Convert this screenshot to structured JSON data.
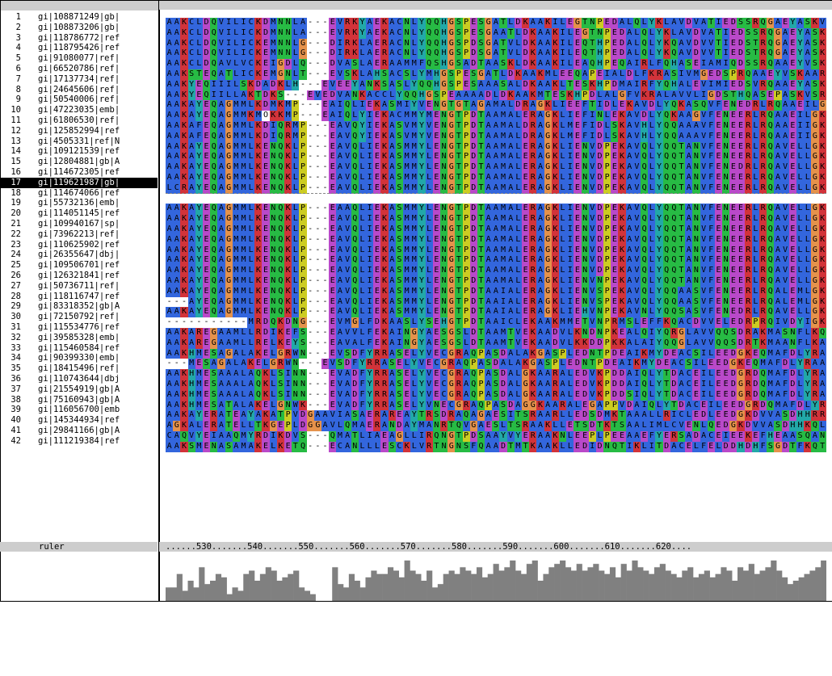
{
  "colors": {
    "A": "#3366dd",
    "I": "#3366dd",
    "L": "#3366dd",
    "M": "#3366dd",
    "F": "#3366dd",
    "W": "#3366dd",
    "V": "#3366dd",
    "C": "#3366dd",
    "K": "#d2333a",
    "R": "#d2333a",
    "E": "#b949c9",
    "D": "#b949c9",
    "N": "#27bb44",
    "Q": "#27bb44",
    "S": "#27bb44",
    "T": "#27bb44",
    "G": "#e5924b",
    "P": "#cccc22",
    "H": "#22a8a8",
    "Y": "#22a8a8",
    "-": "#ffffff"
  },
  "sequences": [
    {
      "num": "1",
      "name": "gi|108871249|gb|",
      "seq": "AAKCLDQVILICKDMNNLA---EVRKYAEKACNLYQQHGSPESGATLDKAAKILEGTNPEDALQLYKLAVDVATIEDSSRQGAEYASKVARIMVKLQMYDQA"
    },
    {
      "num": "2",
      "name": "gi|108873206|gb|",
      "seq": "AAKCLDQVILICKDMNNLA---EVRKYAEKACNLYQQHGSPESGAATLDKAAKILEGTNPEDALQLYKLAVDVATIEDSSRQGAEYASKVARIMVKLQMYDQA"
    },
    {
      "num": "3",
      "name": "gi|118786772|ref",
      "seq": "AAKCLDQVILICKEMNNLG---DIRKLAERACNLYQQHGSPDSGATVLDKAAKILEQTHPEDALQLYKQAVDVVTIEDSTRQGAEYASKVARIMVKLQMYDQA"
    },
    {
      "num": "4",
      "name": "gi|118795426|ref",
      "seq": "AAKCLDQVILICKEMNNLG---DIRKLAERACNLYQQHGSPDSGATVLDKAAKILEQTHPEDALQLYKQAVDVVTIEDSTRQGAEYASKVARIMVKLQMYDQA"
    },
    {
      "num": "5",
      "name": "gi|91080077|ref|",
      "seq": "AAKCLDQAVLVCKEIGDLQ---DVASLAERAAMMFQSHGSADTAASKLDKAAKILEAQHPEQAIRLFQHASEIAMIQDSSRQAAEYVSKAARLHVKLQQYDLA"
    },
    {
      "num": "6",
      "name": "gi|66520786|ref|",
      "seq": "AAKSTEQATLICKEMGNLT---EVSKLAHSACSLYMHGSPESGATLDKAAKMLEEQAPEIALDLFKRASIVMGEDSPRQAAEYVSKAARLLVKLQMYDEA"
    },
    {
      "num": "7",
      "name": "gi|17137734|ref|",
      "seq": "AAKYEQIIILSKDADKLH---EVEEYANKSASLYQQHGSPESAAASALDKAAKLTESKHPDMAIRFYQHALEVIMIEDSVRQAAEYASKVSRILVKLRKYDEA"
    },
    {
      "num": "8",
      "name": "gi|24645606|ref|",
      "seq": "AAKYEQIILLAKTDKS---EVEDVANKACCLYQQHGSPEAAAADLDKAAKMTESKHPDLALGFVKRALAVVLIGDSTHQASEPASKVSRILVKLRKYEEA"
    },
    {
      "num": "9",
      "name": "gi|50540006|ref|",
      "seq": "AAKAYEQAGMMLKDMKMP---EAIQLIEKASMIYVENGTGTAGAMALDRAGKLIEEFTIDLEKAVDLYQKASQVFENEDRLRQAAEILGKSSRLLIRLIDEA"
    },
    {
      "num": "10",
      "name": "gi|47223035|emb|",
      "seq": "AAKAYEQAGMMKMOKKMP---EAIQLYIEKACMMYMENGTPDTAAMALERAGKLIEFINLEKAVDLYQKAAGVFENEERLRQAAEILGKAARLLVRLNRLDEA"
    },
    {
      "num": "11",
      "name": "gi|61806530|ref|",
      "seq": "AAKAFEQAGMMLKDIQRMP---EAVQYIEKASVMYVENGTPDTAAMALDRAGKLMEFIDLSKAVHLYQQAAAVFENEERLRQAAEIIGKASRLLVRQQKFDEA"
    },
    {
      "num": "12",
      "name": "gi|125852994|ref",
      "seq": "AAKAFEQAGMMLKDIQRMP---EAVQYIEKASVMYVENGTPDTAAMALDRAGKLMEFIDLSKAVHLYQQAAAVFENEERLRQAAEIIGKASRLLVRQQKFDEA"
    },
    {
      "num": "13",
      "name": "gi|4505331|ref|N",
      "seq": "AAKAYEQAGMMLKENQKLP---EAVQLIEKASMMYLENGTPDTAAMALERAGKLIENVDPEKAVQLYQQTANVFENEERLRQAVELLGKASRLLVRGRRFDEA"
    },
    {
      "num": "14",
      "name": "gi|109121539|ref",
      "seq": "AAKAYEQAGMMLKENQKLP---EAVQLIEKASMMYLENGTPDTAAMALERAGKLIENVDPEKAVQLYQQTANVFENEERLRQAVELLGKASRLLVRGRRFDEA"
    },
    {
      "num": "15",
      "name": "gi|12804881|gb|A",
      "seq": "AAKAYEQAGMMLKENQKLP---EAVQLIEKASMMYLENGTPDTAAMALERAGKLIENVDPEKAVQLYQQTANVFENEDRLRQAVELLGKASRLLVRGRRFDEA"
    },
    {
      "num": "16",
      "name": "gi|114672305|ref",
      "seq": "AAKAYEQAGMMLKENQKLP---EAVQLIEKASMMYLENGTPDTAAMALERAGKLIENVDPEKAVQLYQQTANVFENEERLRQAVELLGKASRLLVRGRRFDEA"
    },
    {
      "num": "17",
      "name": "gi|119621987|gb|",
      "seq": "LCRAYEQAGMMLKENQKLP---EAVQLIEKASMMYLENGTPDTAAMALERAGKLIENVDPEKAVQLYQQTANVFENEERLRQAVELLGKASRLLVRGRRFDEA",
      "selected": true
    },
    {
      "num": "18",
      "name": "gi|114674066|ref",
      "seq": "---------------------------------------------------------------------------------------------------------------------",
      "disc": true
    },
    {
      "num": "19",
      "name": "gi|55732136|emb|",
      "seq": "AAKAYEQAGMMLKENQKLP---EAAQLIEKASMMYLENGTPDTAAMALERAGKLIENVDPEKAVQLYQQTANVFENEERLRQAVELLGKASRLLVRGRRFDEA"
    },
    {
      "num": "20",
      "name": "gi|114051145|ref",
      "seq": "AAKAYEQAGMMLKENQKLP---EAVQLIEKASMMYLENGTPDTAAMALERAGKLIENVDPEKAVQLYQQTANVFENEERLRQAVELLGKASRLLVRGRRFDEA"
    },
    {
      "num": "21",
      "name": "gi|109940167|sp|",
      "seq": "AAKAYEQAGMMLKENQKLP---EAVQLIEKASMMYLENGTPDTAAMALERAGKLIENVDPEKAVQLYQQTANVFENEERLRQAVELLGKASRLLVRGRRFDEA"
    },
    {
      "num": "22",
      "name": "gi|73962213|ref|",
      "seq": "AAKAYEQAGMMLKENQKLP---EAVQLIEKASMMYLENGTPDTAAMALERAGKLIENVDPEKAVQLYQQTANVFENEERLRQAVELLGKASRLLVRGRRFDEA"
    },
    {
      "num": "23",
      "name": "gi|110625902|ref",
      "seq": "AAKAYEQAGMMLKENQKLP---EAVQLIEKASMMYLENGTPDTAAMALERAGKLIENVDPEKAVQLYQQTANVFENEERLRQAVELLGKASRLLVRGRRFDEA"
    },
    {
      "num": "24",
      "name": "gi|26355647|dbj|",
      "seq": "AAKAYEQAGMMLKENQKLP---EAVQLIEKASMMYLENGTPDTAAMALERAGKLIENVDPEKAVQLYQQTANVFENEERLRQAVELLGKASRLLVRGRRFDEA"
    },
    {
      "num": "25",
      "name": "gi|109506701|ref",
      "seq": "AAKAYEQAGMMLKENQKLP---EAVQLIEKASMMYLENGTPDTAAMALERAGKLIENVDPEKAVQLYQQTANVFENEERLRQAVELLGKASRLLVRGRRFDEA"
    },
    {
      "num": "26",
      "name": "gi|126321841|ref",
      "seq": "AAKAYEQAGMMLKENQKLP---EAVQLIEKASMMYLENGTPDTAAMALERAGKLIENVNPEKAVQLYQQTANVFENEERLRQAVELLGKASRLLVRGRRFDEA"
    },
    {
      "num": "27",
      "name": "gi|50736711|ref|",
      "seq": "AAKAYEQAGMMLKENQKLP---EAVQLIEKASMMYLENGTPDTAAIALERAGKLIENVSPEKAVQLYQQAASVFENEERLRQALEMLGKASRLLVRGRRLDEA"
    },
    {
      "num": "28",
      "name": "gi|118116747|ref",
      "seq": "---AYEQAGMMLKENQKLP---EAVQLIEKASMMYLENGTPDTAAIALERAGKLIENVSPEKAVQLYQQAASVFENEERLRQALEMLGKASRLLVRGR-----"
    },
    {
      "num": "29",
      "name": "gi|83318352|gb|A",
      "seq": "AAKAYEQAGMMLKENQKLP---EAVQLIEKASMMYLENGTPDTAAIALERAGKLIEHVNPEKAVNLYQQSASVFENEDRLRQAVELLGKASRLLVRARRLDEA"
    },
    {
      "num": "30",
      "name": "gi|72150792|ref|",
      "seq": "-----------MRDQKDNG---EVMGLFDKAASLYSEHGTPDTAAICLEKAAKMMETVNPRMSLEFFKQACDVVELEDRPRQIVDYIGKASRLVIRIQDYDEA"
    },
    {
      "num": "31",
      "name": "gi|115534776|ref",
      "seq": "AAKAREGAAMLLRDIKEFS---EAVVLFEKAINGYAESGSLDTAAMTVEKAADVLKNDNPKEALQIYQRGLAVVQQSDRAKMASNFLKQITKISLSLQTLDVKGA"
    },
    {
      "num": "32",
      "name": "gi|39585328|emb|",
      "seq": "AAKAREGAAMLLRELKEYS---EAVALFEKAINGYAESGSLDTAAMTVEKAADVLKKDDPKKALAIYQQGLAVVQQSDRTKMAANFLKASTKLFLELGDVKGA"
    },
    {
      "num": "33",
      "name": "gi|115460584|ref",
      "seq": "AAKHMESAGALAKELGRWN---EVSDFYRRASELYVECGRAQPASDALAKGASPLEDNTPDEAIKMYDEACSILEEDGKEQMAFDLYRAASLYVKLEKYSDA"
    },
    {
      "num": "34",
      "name": "gi|90399330|emb|",
      "seq": "---MESAGALAKELGRWN---EVSDFYRRASELYVECGRAQPASDALAKGASPLEDNTPDEAIKMYDEACSILEEDGKEQMAFDLYRAASLYVKLEKYSDA"
    },
    {
      "num": "35",
      "name": "gi|18415496|ref|",
      "seq": "AAKHMESAAALAQKLSINN---EVADFYRRASELYVECGRAQPASDALGKAARALEDVKPDDAIQLYTDACEILEEDGRDQMAFDLYRACANVYIKLEKFTDA"
    },
    {
      "num": "36",
      "name": "gi|110743644|dbj",
      "seq": "AAKHMESAAALAQKLSINN---EVADFYRRASELYVECGRAQPASDALGKAARALEDVKPDDAIQLYTDACEILEEDGRDQMAFDLYRACANVYIKLEKFTDA"
    },
    {
      "num": "37",
      "name": "gi|21554919|gb|A",
      "seq": "AAKHMESAAALAQKLSINN---EVADFYRRASELYVECGRAQPASDALGKAARALEDVKPDDSIQLYTDACEILEEDGRDQMAFDLYRACANVYIKLEKFTDA"
    },
    {
      "num": "38",
      "name": "gi|75160943|gb|A",
      "seq": "AAKHMESATALAKELGNWK---EVADFYRRASELYVNECGRAQPASDAGGKAARALEGAPPVDAIQLYTDACEILEEDGRDQMAFDLYRDAAKVYVKLEKYEDA"
    },
    {
      "num": "39",
      "name": "gi|116056700|emb",
      "seq": "AAKAYERATEAYAKATPVDGAAVIASAERAREAYTRSDRAQAGAESITSRAARLLEDSDMKTAAALLRICLEDLEEDGKDVVASDHHRRAVLLPAELVQDA"
    },
    {
      "num": "40",
      "name": "gi|145344934|ref",
      "seq": "AGKALERATELLTKGEPLDGGAVLQMAERANDAYMANRTQVGAESLTSRAAKLLETSDTKTSAALIMLCVENLQEDGKDVVASDHHKQLGATLVRAEFYQDA"
    },
    {
      "num": "41",
      "name": "gi|29841166|gb|A",
      "seq": "CAQVYEIAAQMYRDIKDVS---QMATLIAEAGLLIRQNGTPDSAAYVYERAAKNLEEPLPEEAAEFYERSADACEIEEKEFHEAASQANNAAKLWVRLKRFDEA"
    },
    {
      "num": "42",
      "name": "gi|111219384|ref",
      "seq": "AAKSMENASAMAKELKETQ---ECANLLLESCKLVRTNGNSFQAADTMTKAAKLLEDIDNQTIKLITDACELFELDDHDHFSGDTFKQTTSMLLKHKKYTEA"
    }
  ],
  "ruler": {
    "label": "ruler",
    "text": "......530.......540.......550.......560.......570.......580.......590.......600.......610.......620...."
  },
  "conservation": [
    4,
    4,
    8,
    3,
    6,
    4,
    10,
    5,
    6,
    8,
    7,
    2,
    4,
    3,
    8,
    9,
    6,
    8,
    10,
    9,
    6,
    7,
    8,
    9,
    4,
    3,
    2,
    0,
    0,
    0,
    10,
    5,
    4,
    8,
    6,
    4,
    7,
    9,
    8,
    8,
    10,
    9,
    7,
    12,
    9,
    8,
    6,
    9,
    4,
    5,
    8,
    9,
    8,
    10,
    9,
    8,
    10,
    7,
    8,
    11,
    9,
    10,
    12,
    9,
    8,
    11,
    12,
    6,
    8,
    10,
    11,
    12,
    10,
    9,
    11,
    9,
    10,
    11,
    9,
    8,
    10,
    7,
    11,
    9,
    12,
    10,
    9,
    8,
    10,
    11,
    9,
    8,
    7,
    9,
    10,
    7,
    8,
    9,
    7,
    8,
    10,
    9,
    6,
    10,
    9,
    11,
    8,
    9,
    10,
    12,
    9,
    7,
    5,
    6,
    7,
    8,
    9,
    10,
    12
  ]
}
